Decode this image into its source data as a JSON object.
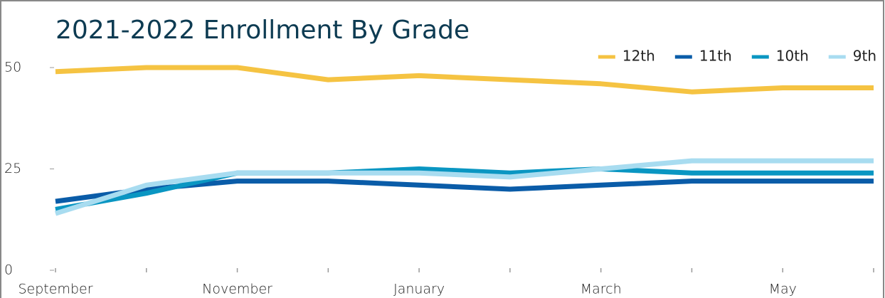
{
  "chart_data": {
    "type": "line",
    "title": "2021-2022 Enrollment By Grade",
    "categories": [
      "September",
      null,
      "November",
      null,
      "January",
      null,
      "March",
      null,
      "May",
      null
    ],
    "series": [
      {
        "name": "12th",
        "color": "#f5c342",
        "values": [
          49,
          50,
          50,
          47,
          48,
          47,
          46,
          44,
          45,
          45
        ]
      },
      {
        "name": "11th",
        "color": "#0a5ca8",
        "values": [
          17,
          20,
          22,
          22,
          21,
          20,
          21,
          22,
          22,
          22
        ]
      },
      {
        "name": "10th",
        "color": "#0a96c2",
        "values": [
          15,
          19,
          24,
          24,
          25,
          24,
          25,
          24,
          24,
          24
        ]
      },
      {
        "name": "9th",
        "color": "#a8dcf0",
        "values": [
          14,
          21,
          24,
          24,
          24,
          23,
          25,
          27,
          27,
          27
        ]
      }
    ],
    "ylim": [
      0,
      55
    ],
    "yticks": [
      0,
      25,
      50
    ],
    "legend": "top-right"
  }
}
